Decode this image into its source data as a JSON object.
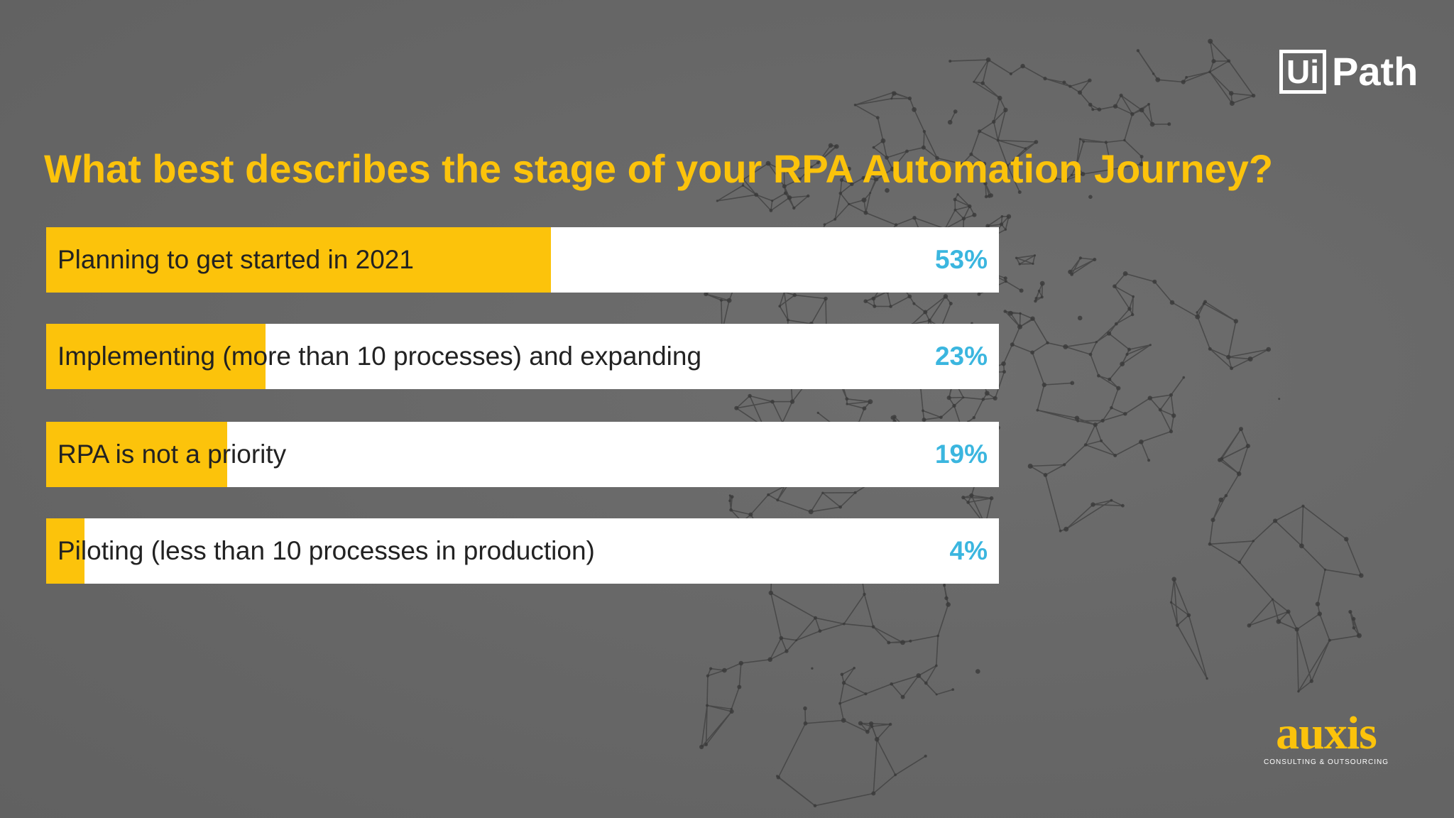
{
  "title": "What best describes the stage of your RPA Automation Journey?",
  "colors": {
    "background": "#6a6a6a",
    "accent": "#fcc30b",
    "bar_track": "#ffffff",
    "value_text": "#3bb6df",
    "label_text": "#222222"
  },
  "logos": {
    "uipath": {
      "box_text": "Ui",
      "word": "Path"
    },
    "auxis": {
      "name": "auxis",
      "tagline": "CONSULTING & OUTSOURCING"
    }
  },
  "chart_data": {
    "type": "bar",
    "orientation": "horizontal",
    "title": "What best describes the stage of your RPA Automation Journey?",
    "categories": [
      "Planning to get started in 2021",
      "Implementing (more than 10 processes) and expanding",
      "RPA is not a priority",
      "Piloting (less than 10 processes in production)"
    ],
    "values": [
      53,
      23,
      19,
      4
    ],
    "value_labels": [
      "53%",
      "23%",
      "19%",
      "4%"
    ],
    "unit": "%",
    "xlim": [
      0,
      100
    ],
    "grid": false,
    "legend": "none"
  }
}
